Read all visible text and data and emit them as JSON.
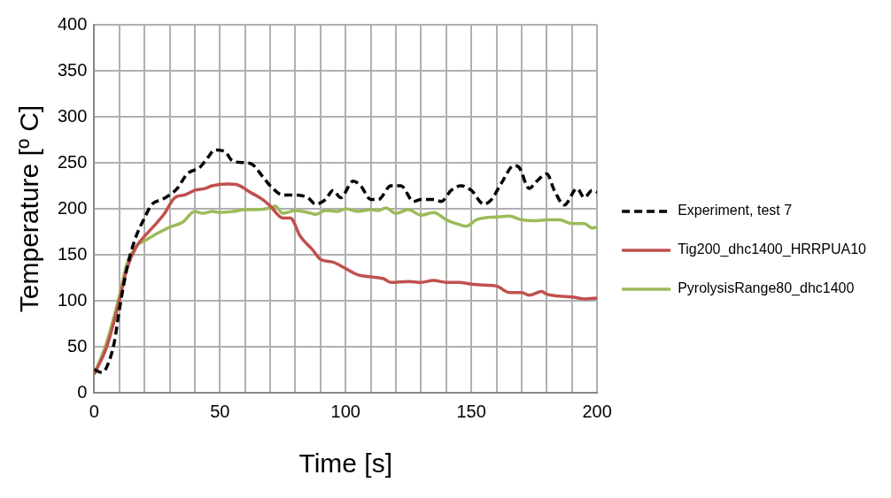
{
  "chart_data": {
    "type": "line",
    "xlabel": "Time [s]",
    "ylabel": "Temperature [º C]",
    "xlim": [
      0,
      200
    ],
    "ylim": [
      0,
      400
    ],
    "xticks": [
      0,
      {
        "value": 10,
        "label": null
      },
      {
        "value": 20,
        "label": null
      },
      {
        "value": 30,
        "label": null
      },
      {
        "value": 40,
        "label": null
      },
      50,
      {
        "value": 60,
        "label": null
      },
      {
        "value": 70,
        "label": null
      },
      {
        "value": 80,
        "label": null
      },
      {
        "value": 90,
        "label": null
      },
      100,
      {
        "value": 110,
        "label": null
      },
      {
        "value": 120,
        "label": null
      },
      {
        "value": 130,
        "label": null
      },
      {
        "value": 140,
        "label": null
      },
      150,
      {
        "value": 160,
        "label": null
      },
      {
        "value": 170,
        "label": null
      },
      {
        "value": 180,
        "label": null
      },
      {
        "value": 190,
        "label": null
      },
      200
    ],
    "yticks": [
      0,
      50,
      100,
      150,
      200,
      250,
      300,
      350,
      400
    ],
    "grid": true,
    "legend": "right",
    "marker": "none",
    "series": [
      {
        "name": "Experiment, test 7",
        "color": "#000000",
        "line_style": "dashed",
        "x": [
          0,
          3,
          5,
          8,
          10,
          13,
          16,
          20,
          23,
          27,
          30,
          33,
          37,
          42,
          45,
          48,
          52,
          55,
          60,
          63,
          67,
          70,
          75,
          80,
          85,
          88,
          92,
          95,
          98,
          103,
          106,
          110,
          113,
          118,
          122,
          127,
          130,
          135,
          138,
          142,
          146,
          150,
          155,
          158,
          162,
          167,
          169,
          173,
          176,
          180,
          183,
          187,
          192,
          195,
          198,
          200
        ],
        "values": [
          25,
          22,
          28,
          55,
          90,
          135,
          165,
          190,
          205,
          210,
          215,
          222,
          238,
          245,
          255,
          264,
          262,
          252,
          250,
          248,
          235,
          225,
          215,
          215,
          212,
          205,
          210,
          220,
          212,
          230,
          225,
          210,
          210,
          225,
          225,
          208,
          210,
          210,
          208,
          220,
          225,
          220,
          205,
          210,
          228,
          247,
          245,
          222,
          230,
          238,
          220,
          204,
          222,
          212,
          220,
          218
        ]
      },
      {
        "name": "Tig200_dhc1400_HRRPUA10",
        "color": "#c0504d",
        "line_style": "solid",
        "x": [
          0,
          5,
          10,
          13,
          17,
          20,
          25,
          28,
          32,
          36,
          40,
          44,
          47,
          53,
          57,
          62,
          67,
          70,
          75,
          78,
          82,
          87,
          90,
          95,
          100,
          105,
          110,
          115,
          118,
          125,
          130,
          135,
          140,
          145,
          150,
          155,
          160,
          165,
          170,
          173,
          178,
          180,
          185,
          190,
          195,
          200
        ],
        "values": [
          20,
          50,
          100,
          135,
          160,
          170,
          185,
          195,
          212,
          215,
          220,
          222,
          225,
          227,
          226,
          218,
          210,
          203,
          190,
          190,
          170,
          155,
          145,
          142,
          135,
          128,
          126,
          124,
          120,
          121,
          120,
          122,
          120,
          120,
          118,
          117,
          116,
          109,
          109,
          106,
          110,
          107,
          105,
          104,
          102,
          103
        ]
      },
      {
        "name": "PyrolysisRange80_dhc1400",
        "color": "#9bbb59",
        "line_style": "solid",
        "x": [
          0,
          5,
          10,
          13,
          17,
          20,
          25,
          30,
          35,
          40,
          43,
          47,
          50,
          55,
          60,
          65,
          70,
          72,
          75,
          80,
          85,
          88,
          92,
          97,
          100,
          105,
          110,
          113,
          116,
          120,
          125,
          130,
          135,
          140,
          145,
          148,
          152,
          155,
          160,
          165,
          170,
          175,
          180,
          185,
          190,
          195,
          198,
          200
        ],
        "values": [
          20,
          55,
          105,
          140,
          160,
          165,
          173,
          180,
          185,
          197,
          195,
          197,
          196,
          197,
          199,
          199,
          201,
          203,
          195,
          198,
          196,
          194,
          198,
          197,
          200,
          197,
          199,
          198,
          201,
          195,
          199,
          193,
          196,
          188,
          183,
          181,
          188,
          190,
          191,
          192,
          188,
          187,
          188,
          188,
          184,
          184,
          179,
          180
        ]
      }
    ]
  }
}
